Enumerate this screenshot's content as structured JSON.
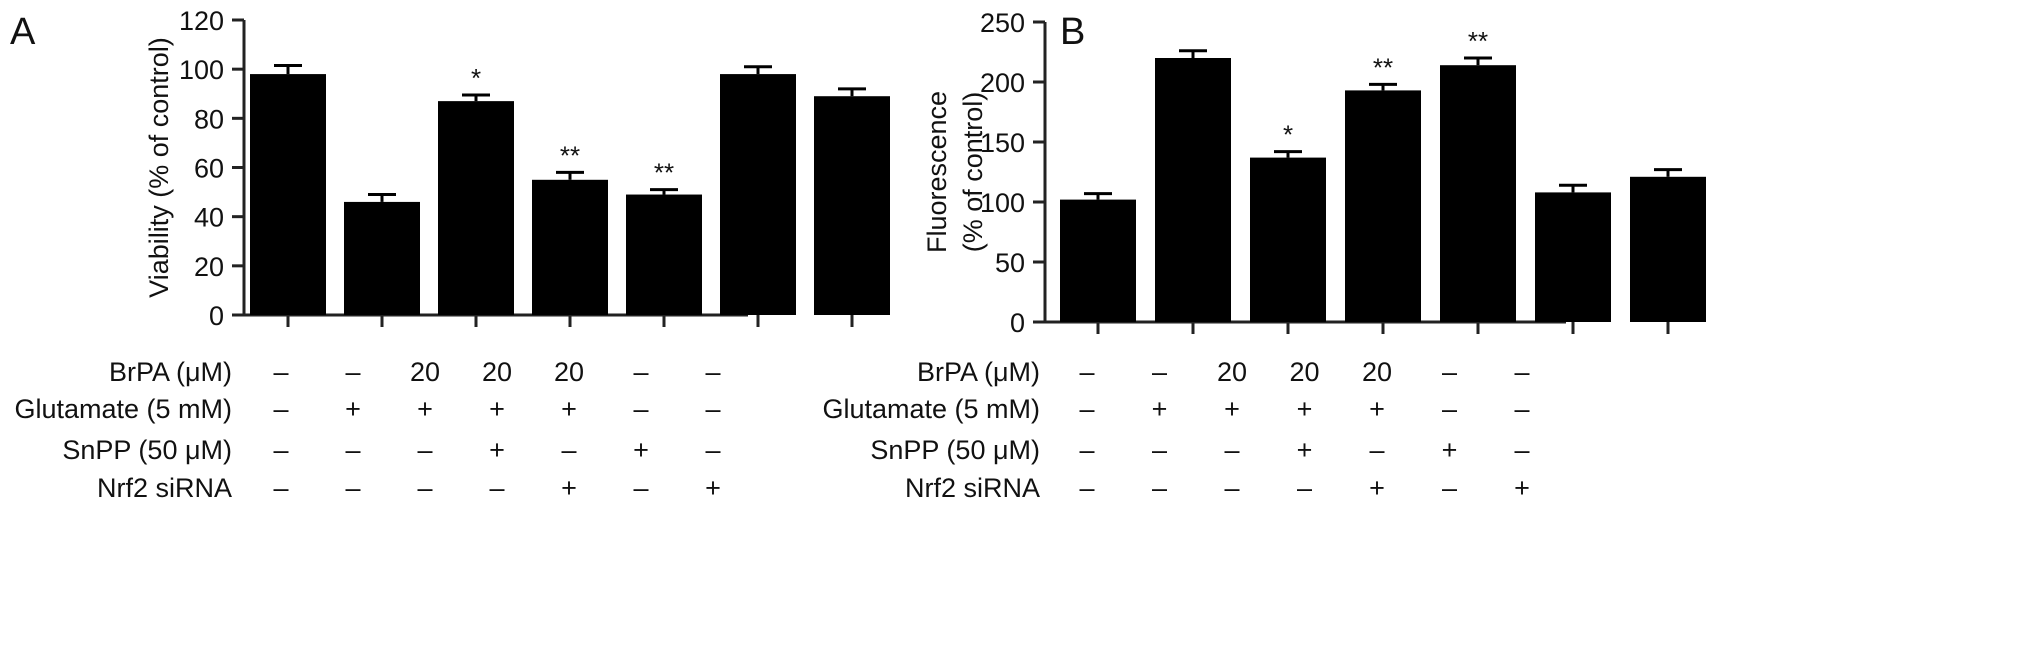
{
  "chart_data": [
    {
      "panel": "A",
      "type": "bar",
      "ylabel": "Viability (% of control)",
      "ylim": [
        0,
        120
      ],
      "yticks": [
        0,
        20,
        40,
        60,
        80,
        100,
        120
      ],
      "values": [
        98,
        46,
        87,
        55,
        49,
        98,
        89
      ],
      "errors": [
        3.5,
        3,
        2.5,
        3,
        2,
        3,
        3
      ],
      "significance": [
        "",
        "",
        "*",
        "**",
        "**",
        "",
        ""
      ],
      "bar_color": "#000000",
      "grid": false,
      "conditions": [
        {
          "label": "BrPA (μM)",
          "cells": [
            "–",
            "–",
            "20",
            "20",
            "20",
            "–",
            "–"
          ]
        },
        {
          "label": "Glutamate (5 mM)",
          "cells": [
            "–",
            "+",
            "+",
            "+",
            "+",
            "–",
            "–"
          ]
        },
        {
          "label": "SnPP (50 μM)",
          "cells": [
            "–",
            "–",
            "–",
            "+",
            "–",
            "+",
            "–"
          ]
        },
        {
          "label": "Nrf2 siRNA",
          "cells": [
            "–",
            "–",
            "–",
            "–",
            "+",
            "–",
            "+"
          ]
        }
      ]
    },
    {
      "panel": "B",
      "type": "bar",
      "ylabel_lines": [
        "Fluorescence",
        "(% of control)"
      ],
      "ylim": [
        0,
        250
      ],
      "yticks": [
        0,
        50,
        100,
        150,
        200,
        250
      ],
      "values": [
        102,
        220,
        137,
        193,
        214,
        108,
        121
      ],
      "errors": [
        5,
        6,
        5,
        5,
        6,
        6,
        6
      ],
      "significance": [
        "",
        "",
        "*",
        "**",
        "**",
        "",
        ""
      ],
      "bar_color": "#000000",
      "grid": false,
      "conditions": [
        {
          "label": "BrPA (μM)",
          "cells": [
            "–",
            "–",
            "20",
            "20",
            "20",
            "–",
            "–"
          ]
        },
        {
          "label": "Glutamate (5 mM)",
          "cells": [
            "–",
            "+",
            "+",
            "+",
            "+",
            "–",
            "–"
          ]
        },
        {
          "label": "SnPP (50 μM)",
          "cells": [
            "–",
            "–",
            "–",
            "+",
            "–",
            "+",
            "–"
          ]
        },
        {
          "label": "Nrf2 siRNA",
          "cells": [
            "–",
            "–",
            "–",
            "–",
            "+",
            "–",
            "+"
          ]
        }
      ]
    }
  ]
}
